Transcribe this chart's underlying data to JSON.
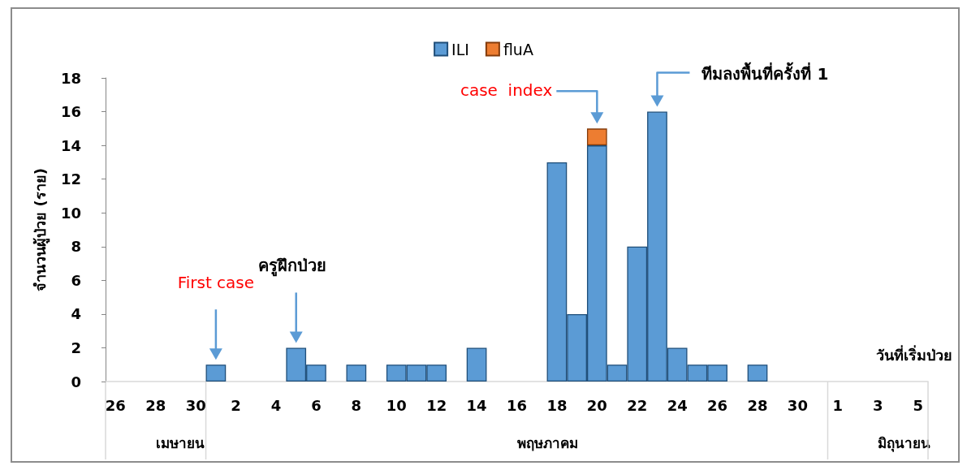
{
  "chart_data": {
    "type": "bar",
    "stacked": true,
    "ylabel": "จำนวนผู้ป่วย (ราย)",
    "xlabel": "วันที่เริ่มป่วย",
    "categories": [
      "26",
      null,
      "28",
      null,
      "30",
      null,
      "2",
      null,
      "4",
      null,
      "6",
      null,
      "8",
      null,
      "10",
      null,
      "12",
      null,
      "14",
      null,
      "16",
      null,
      "18",
      null,
      "20",
      null,
      "22",
      null,
      "24",
      null,
      "26",
      null,
      "28",
      null,
      "30",
      null,
      "1",
      null,
      "3",
      null,
      "5"
    ],
    "series": [
      {
        "name": "ILI",
        "color": "#5b9bd5",
        "values": [
          0,
          0,
          0,
          0,
          0,
          1,
          0,
          0,
          0,
          2,
          1,
          0,
          1,
          0,
          1,
          1,
          1,
          0,
          2,
          0,
          0,
          0,
          13,
          4,
          14,
          1,
          8,
          16,
          2,
          1,
          1,
          0,
          1,
          0,
          0,
          0,
          0,
          0,
          0,
          0,
          0
        ]
      },
      {
        "name": "fluA",
        "color": "#ed7d31",
        "values": [
          0,
          0,
          0,
          0,
          0,
          0,
          0,
          0,
          0,
          0,
          0,
          0,
          0,
          0,
          0,
          0,
          0,
          0,
          0,
          0,
          0,
          0,
          0,
          0,
          1,
          0,
          0,
          0,
          0,
          0,
          0,
          0,
          0,
          0,
          0,
          0,
          0,
          0,
          0,
          0,
          0
        ]
      }
    ],
    "ylim": [
      0,
      18
    ],
    "yticks": [
      0,
      2,
      4,
      6,
      8,
      10,
      12,
      14,
      16,
      18
    ],
    "grid": false,
    "legend": "top",
    "annotations": [
      "First case",
      "ครูฝึกป่วย",
      "case  index",
      "ทีมลงพื้นที่ครั้งที่ 1",
      "เมษายน",
      "พฤษภาคม",
      "มิถุนายน"
    ]
  }
}
